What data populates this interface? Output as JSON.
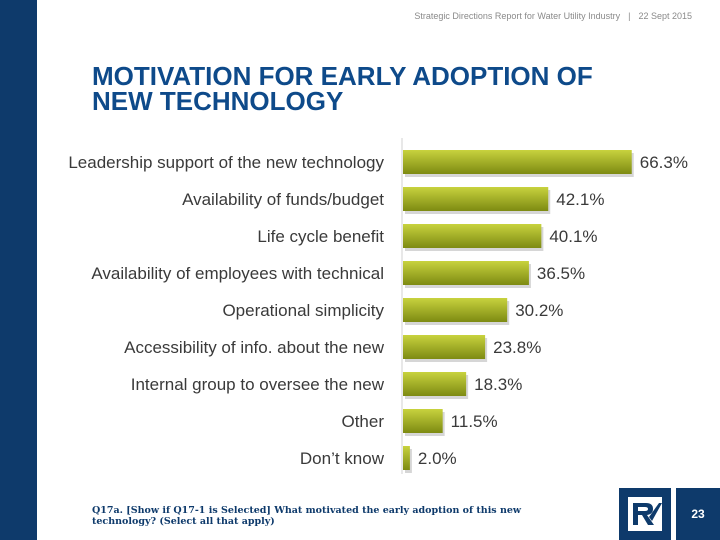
{
  "header": {
    "report": "Strategic Directions Report for Water Utility Industry",
    "separator": "|",
    "date": "22 Sept 2015"
  },
  "title": {
    "line1": "MOTIVATION FOR EARLY ADOPTION OF",
    "line2": "NEW TECHNOLOGY"
  },
  "footnote": "Q17a. [Show if Q17-1 is Selected] What motivated the early adoption of this new technology? (Select all that apply)",
  "page_number": "23",
  "logo": {
    "icon": "rv-logo-icon"
  },
  "colors": {
    "sidebar": "#0e3a6b",
    "title": "#0e4a8a",
    "bar_light": "#b7c233",
    "bar_dark": "#7d8a12",
    "label": "#3a3a3a"
  },
  "chart_data": {
    "type": "bar",
    "orientation": "horizontal",
    "categories": [
      "Leadership support of the new technology",
      "Availability of funds/budget",
      "Life cycle benefit",
      "Availability of employees with technical",
      "Operational simplicity",
      "Accessibility of info. about the new",
      "Internal group to oversee the new",
      "Other",
      "Don’t know"
    ],
    "values": [
      66.3,
      42.1,
      40.1,
      36.5,
      30.2,
      23.8,
      18.3,
      11.5,
      2.0
    ],
    "value_labels": [
      "66.3%",
      "42.1%",
      "40.1%",
      "36.5%",
      "30.2%",
      "23.8%",
      "18.3%",
      "11.5%",
      "2.0%"
    ],
    "xlim": [
      0,
      100
    ],
    "grid": false,
    "legend": "none"
  }
}
